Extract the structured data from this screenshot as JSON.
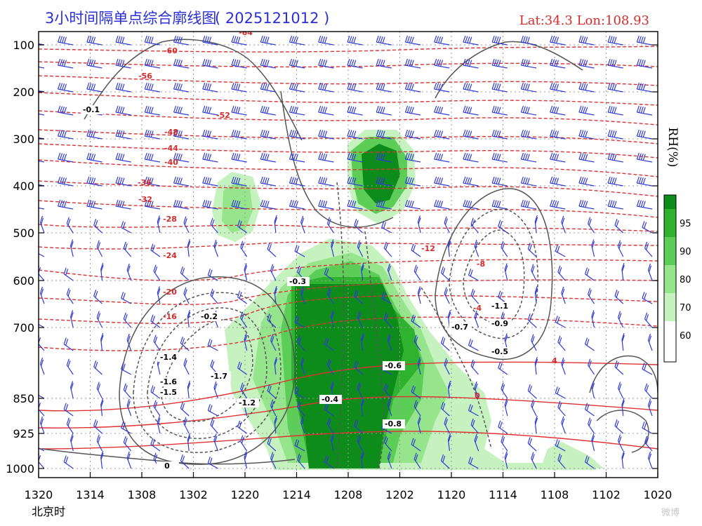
{
  "header": {
    "title": "3小时间隔单点综合廓线图",
    "title_time": "( 2025121012 )",
    "location": "Lat:34.3  Lon:108.93"
  },
  "chart_data": {
    "type": "time-height cross section",
    "title": "3小时间隔单点综合廓线图 ( 2025121012 )",
    "location": {
      "lat": 34.3,
      "lon": 108.93
    },
    "x_axis_label": "北京时",
    "x_ticks": [
      "1320",
      "1314",
      "1308",
      "1302",
      "1220",
      "1214",
      "1208",
      "1202",
      "1120",
      "1114",
      "1108",
      "1102",
      "1020"
    ],
    "y_axis_unit": "hPa",
    "y_ticks": [
      100,
      200,
      300,
      400,
      500,
      600,
      700,
      850,
      925,
      1000
    ],
    "colorbar": {
      "label": "RH(%)",
      "ticks": [
        60,
        70,
        80,
        90,
        95
      ],
      "colors": [
        "#ffffff",
        "#c6f2bf",
        "#96e58d",
        "#5cce58",
        "#2fb22f",
        "#0e8c1b"
      ]
    },
    "temperature_contours": {
      "color": "#d42b2b",
      "labels": [
        "-64",
        "-60",
        "-56",
        "-52",
        "-48",
        "-44",
        "-40",
        "-36",
        "-32",
        "-28",
        "-24",
        "-20",
        "-16",
        "-12",
        "-8",
        "-4",
        "0",
        "4"
      ]
    },
    "vertical_velocity_labels": [
      "0",
      "-0.1",
      "-0.2",
      "-0.3",
      "-0.4",
      "-0.5",
      "-0.6",
      "-0.7",
      "-0.8",
      "-0.9",
      "-1.1",
      "-1.2",
      "-1.4",
      "-1.5",
      "-1.6",
      "-1.7"
    ],
    "grid": true,
    "wind_barbs": true
  },
  "watermark": "微博"
}
